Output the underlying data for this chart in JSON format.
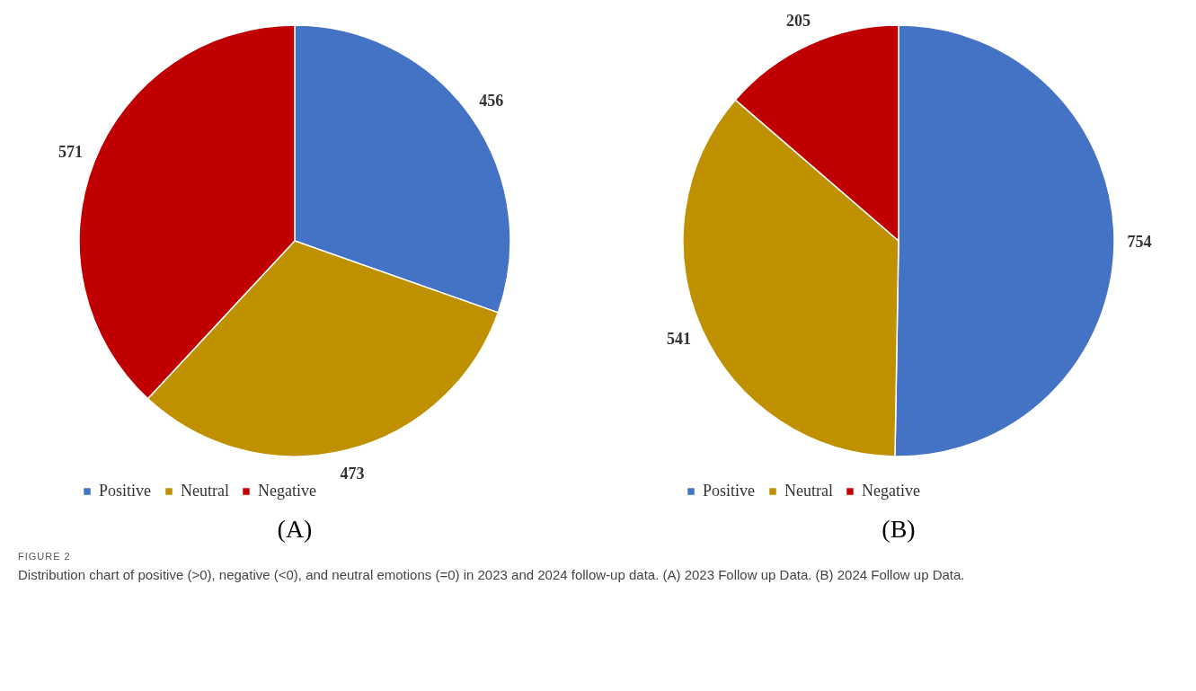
{
  "chart_data": [
    {
      "type": "pie",
      "title": "(A)",
      "categories": [
        "Positive",
        "Neutral",
        "Negative"
      ],
      "values": [
        456,
        473,
        571
      ],
      "colors": [
        "#4472c4",
        "#bf9000",
        "#c00000"
      ],
      "data_labels": true,
      "legend": "bottom"
    },
    {
      "type": "pie",
      "title": "(B)",
      "categories": [
        "Positive",
        "Neutral",
        "Negative"
      ],
      "values": [
        754,
        541,
        205
      ],
      "colors": [
        "#4472c4",
        "#bf9000",
        "#c00000"
      ],
      "data_labels": true,
      "legend": "bottom",
      "annotations": [
        "FIGURE 2",
        "Distribution chart of positive (>0), negative (<0), and neutral emotions (=0) in 2023 and 2024 follow-up data. (A) 2023 Follow up Data. (B) 2024 Follow up Data."
      ]
    }
  ]
}
